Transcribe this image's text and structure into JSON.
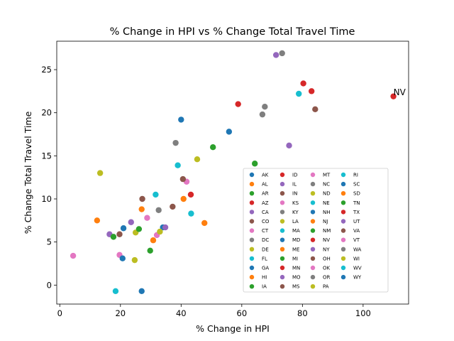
{
  "chart_data": {
    "type": "scatter",
    "title": "% Change in HPI vs % Change Total Travel Time",
    "xlabel": "% Change in HPI",
    "ylabel": "% Change Total Travel Time",
    "xlim": [
      -1,
      115
    ],
    "ylim": [
      -2.2,
      28.3
    ],
    "xticks": [
      0,
      20,
      40,
      60,
      80,
      100
    ],
    "yticks": [
      0,
      5,
      10,
      15,
      20,
      25
    ],
    "grid": false,
    "legend_position": "lower-right",
    "legend_columns": 4,
    "annotations": [
      {
        "text": "NV",
        "x": 110,
        "y": 22
      }
    ],
    "series": [
      {
        "name": "AK",
        "color": "#1f77b4",
        "x": 40,
        "y": 19.2
      },
      {
        "name": "AL",
        "color": "#ff7f0e",
        "x": 40.8,
        "y": 10
      },
      {
        "name": "AR",
        "color": "#2ca02c",
        "x": 50.5,
        "y": 16
      },
      {
        "name": "AZ",
        "color": "#d62728",
        "x": 58.8,
        "y": 21
      },
      {
        "name": "CA",
        "color": "#9467bd",
        "x": 71.3,
        "y": 26.7
      },
      {
        "name": "CO",
        "color": "#8c564b",
        "x": 84.2,
        "y": 20.4
      },
      {
        "name": "CT",
        "color": "#e377c2",
        "x": 41.8,
        "y": 12
      },
      {
        "name": "DC",
        "color": "#7f7f7f",
        "x": 73.3,
        "y": 26.9
      },
      {
        "name": "DE",
        "color": "#bcbd22",
        "x": 13.3,
        "y": 13
      },
      {
        "name": "FL",
        "color": "#17becf",
        "x": 31.6,
        "y": 10.5
      },
      {
        "name": "GA",
        "color": "#1f77b4",
        "x": 34,
        "y": 6.7
      },
      {
        "name": "HI",
        "color": "#ff7f0e",
        "x": 12.3,
        "y": 7.5
      },
      {
        "name": "IA",
        "color": "#2ca02c",
        "x": 64.3,
        "y": 14.1
      },
      {
        "name": "ID",
        "color": "#d62728",
        "x": 80.3,
        "y": 23.4
      },
      {
        "name": "IL",
        "color": "#9467bd",
        "x": 16.4,
        "y": 5.9
      },
      {
        "name": "IN",
        "color": "#8c564b",
        "x": 19.7,
        "y": 5.9
      },
      {
        "name": "KS",
        "color": "#e377c2",
        "x": 28.8,
        "y": 7.8
      },
      {
        "name": "KY",
        "color": "#7f7f7f",
        "x": 38.2,
        "y": 16.5
      },
      {
        "name": "LA",
        "color": "#bcbd22",
        "x": 24.7,
        "y": 2.9
      },
      {
        "name": "MA",
        "color": "#17becf",
        "x": 38.9,
        "y": 13.9
      },
      {
        "name": "MD",
        "color": "#1f77b4",
        "x": 21,
        "y": 6.6
      },
      {
        "name": "ME",
        "color": "#ff7f0e",
        "x": 47.7,
        "y": 7.2
      },
      {
        "name": "MI",
        "color": "#2ca02c",
        "x": 29.8,
        "y": 4
      },
      {
        "name": "MN",
        "color": "#d62728",
        "x": 83,
        "y": 22.5
      },
      {
        "name": "MO",
        "color": "#9467bd",
        "x": 75.6,
        "y": 16.2
      },
      {
        "name": "MS",
        "color": "#8c564b",
        "x": 37.2,
        "y": 9.1
      },
      {
        "name": "MT",
        "color": "#e377c2",
        "x": 32,
        "y": 5.8
      },
      {
        "name": "NC",
        "color": "#7f7f7f",
        "x": 67.6,
        "y": 20.7
      },
      {
        "name": "ND",
        "color": "#bcbd22",
        "x": 33,
        "y": 6.2
      },
      {
        "name": "NE",
        "color": "#17becf",
        "x": 78.8,
        "y": 22.2
      },
      {
        "name": "NH",
        "color": "#1f77b4",
        "x": 27,
        "y": -0.7
      },
      {
        "name": "NJ",
        "color": "#ff7f0e",
        "x": 27,
        "y": 8.8
      },
      {
        "name": "NM",
        "color": "#2ca02c",
        "x": 17.7,
        "y": 5.6
      },
      {
        "name": "NV",
        "color": "#d62728",
        "x": 110,
        "y": 21.9
      },
      {
        "name": "NY",
        "color": "#9467bd",
        "x": 23.5,
        "y": 7.3
      },
      {
        "name": "OH",
        "color": "#8c564b",
        "x": 27.2,
        "y": 10
      },
      {
        "name": "OK",
        "color": "#e377c2",
        "x": 19.7,
        "y": 3.5
      },
      {
        "name": "OR",
        "color": "#7f7f7f",
        "x": 66.8,
        "y": 19.8
      },
      {
        "name": "PA",
        "color": "#bcbd22",
        "x": 25,
        "y": 6.1
      },
      {
        "name": "RI",
        "color": "#17becf",
        "x": 18.4,
        "y": -0.7
      },
      {
        "name": "SC",
        "color": "#1f77b4",
        "x": 55.8,
        "y": 17.8
      },
      {
        "name": "SD",
        "color": "#ff7f0e",
        "x": 30.8,
        "y": 5.2
      },
      {
        "name": "TN",
        "color": "#2ca02c",
        "x": 26.1,
        "y": 6.5
      },
      {
        "name": "TX",
        "color": "#d62728",
        "x": 43.2,
        "y": 10.5
      },
      {
        "name": "UT",
        "color": "#9467bd",
        "x": 34.8,
        "y": 6.7
      },
      {
        "name": "VA",
        "color": "#8c564b",
        "x": 40.6,
        "y": 12.3
      },
      {
        "name": "VT",
        "color": "#e377c2",
        "x": 4.4,
        "y": 3.4
      },
      {
        "name": "WA",
        "color": "#7f7f7f",
        "x": 32.6,
        "y": 8.7
      },
      {
        "name": "WI",
        "color": "#bcbd22",
        "x": 45.3,
        "y": 14.6
      },
      {
        "name": "WV",
        "color": "#17becf",
        "x": 43.3,
        "y": 8.3
      },
      {
        "name": "WY",
        "color": "#1f77b4",
        "x": 20.7,
        "y": 3.1
      }
    ]
  }
}
